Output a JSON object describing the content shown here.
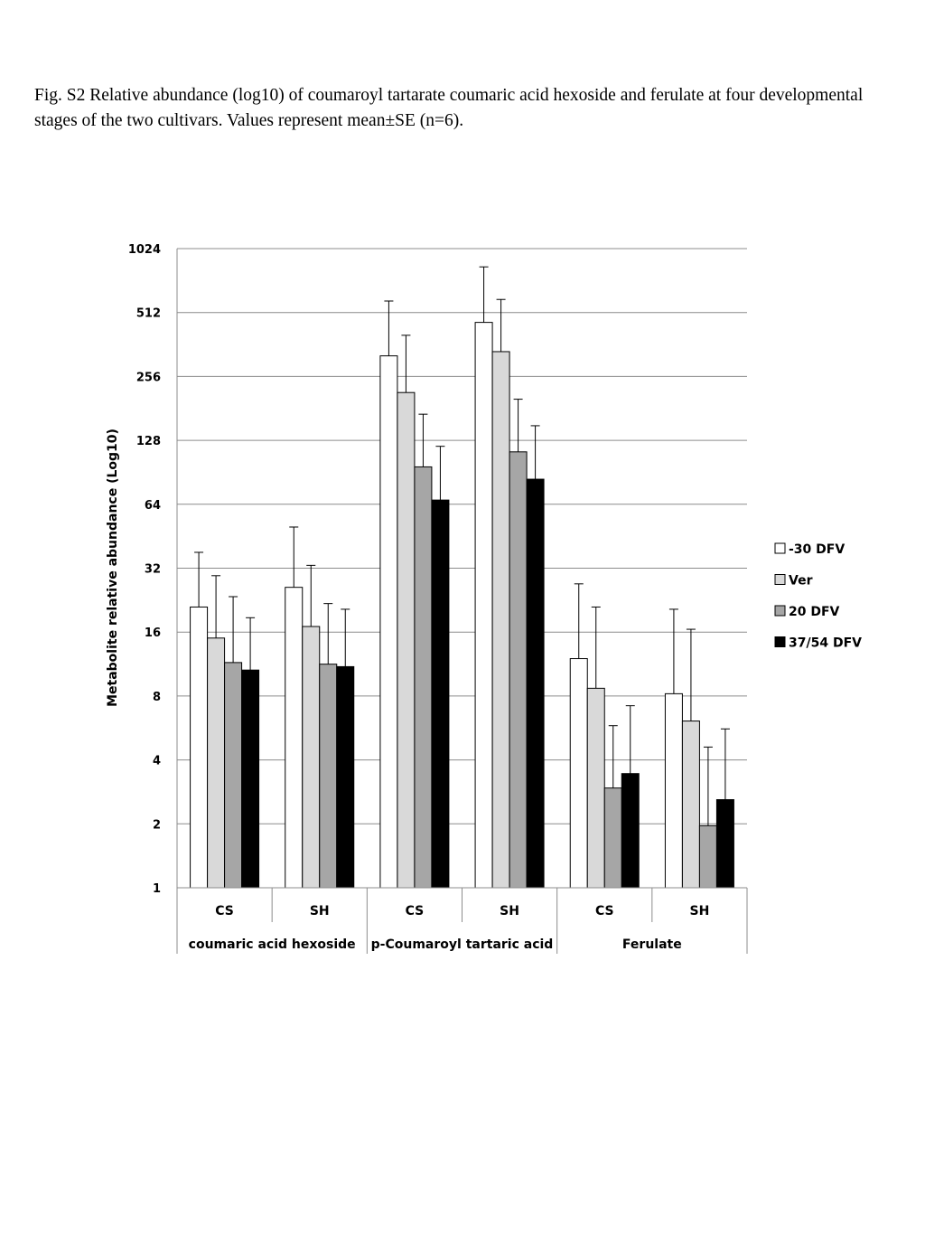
{
  "caption": "Fig. S2 Relative abundance (log10) of coumaroyl tartarate coumaric acid hexoside and ferulate at four developmental stages of the two cultivars. Values represent mean±SE (n=6).",
  "chart_data": {
    "type": "bar",
    "ylabel": "Metabolite relative abundance (Log10)",
    "yscale": "log2",
    "ylim": [
      1,
      1024
    ],
    "yticks": [
      1,
      2,
      4,
      8,
      16,
      32,
      64,
      128,
      256,
      512,
      1024
    ],
    "ytick_labels": [
      "1",
      "2",
      "4",
      "8",
      "16",
      "32",
      "64",
      "128",
      "256",
      "512",
      "1024"
    ],
    "grid": true,
    "legend": "right",
    "groups": [
      {
        "name": "coumaric acid hexoside",
        "categories": [
          "CS",
          "SH"
        ]
      },
      {
        "name": "p-Coumaroyl tartaric acid",
        "categories": [
          "CS",
          "SH"
        ]
      },
      {
        "name": "Ferulate",
        "categories": [
          "CS",
          "SH"
        ]
      }
    ],
    "series": [
      {
        "name": "-30 DFV",
        "color": "#ffffff",
        "values": [
          21,
          26,
          320,
          460,
          12,
          8.2
        ],
        "errors_upper": [
          38,
          50,
          580,
          840,
          27,
          20.5
        ]
      },
      {
        "name": "Ver",
        "color": "#d9d9d9",
        "values": [
          15,
          17,
          215,
          335,
          8.7,
          6.1
        ],
        "errors_upper": [
          29.5,
          33,
          400,
          590,
          21,
          16.5
        ]
      },
      {
        "name": "20 DFV",
        "color": "#a6a6a6",
        "values": [
          11.5,
          11.3,
          96,
          113,
          2.95,
          1.96
        ],
        "errors_upper": [
          23.5,
          21.8,
          170,
          200,
          5.8,
          4.6
        ]
      },
      {
        "name": "37/54 DFV",
        "color": "#000000",
        "values": [
          10.6,
          11,
          67,
          84,
          3.45,
          2.6
        ],
        "errors_upper": [
          18.7,
          20.5,
          120,
          150,
          7.2,
          5.6
        ]
      }
    ]
  }
}
